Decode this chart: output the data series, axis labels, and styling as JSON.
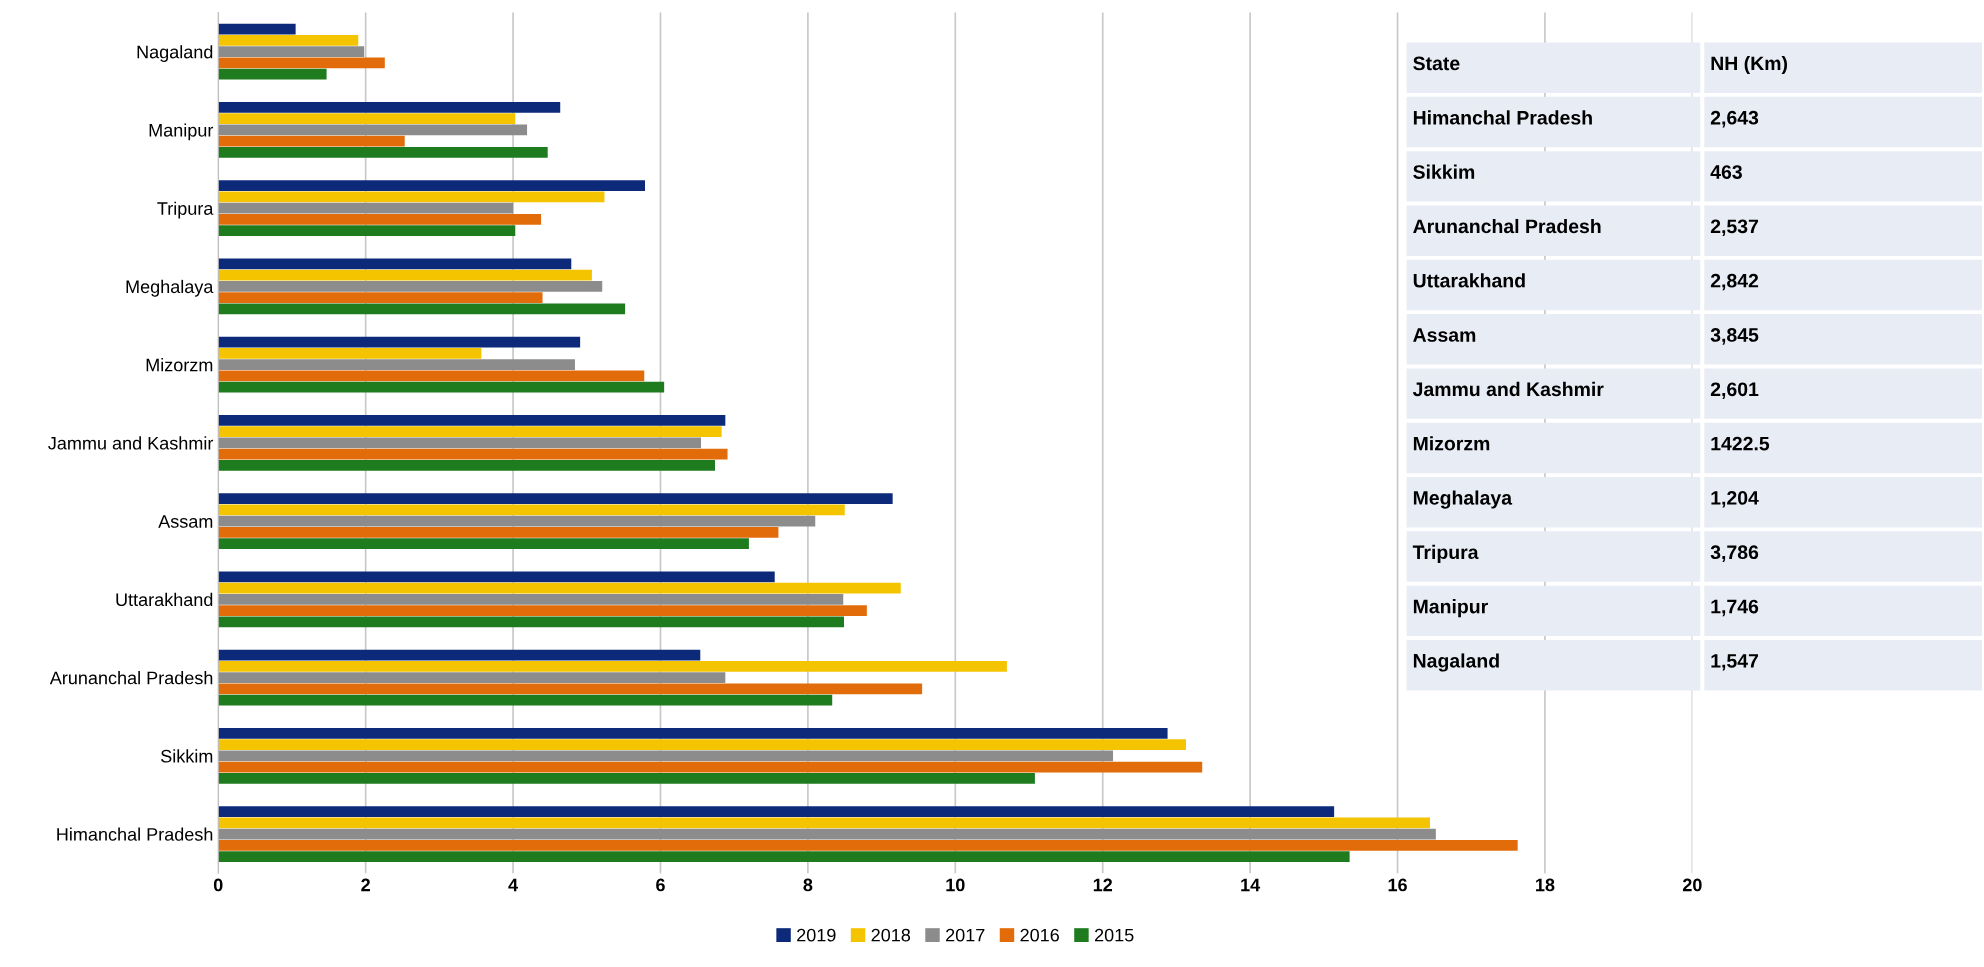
{
  "chart_data": {
    "type": "bar",
    "orientation": "horizontal",
    "categories": [
      "Nagaland",
      "Manipur",
      "Tripura",
      "Meghalaya",
      "Mizorzm",
      "Jammu and Kashmir",
      "Assam",
      "Uttarakhand",
      "Arunanchal Pradesh",
      "Sikkim",
      "Himanchal Pradesh"
    ],
    "series": [
      {
        "name": "2019",
        "color": "#0d2a7a",
        "values": [
          1.05,
          4.64,
          5.79,
          4.79,
          4.91,
          6.88,
          9.15,
          7.55,
          6.54,
          12.88,
          15.14
        ]
      },
      {
        "name": "2018",
        "color": "#f5c400",
        "values": [
          1.9,
          4.03,
          5.24,
          5.07,
          3.57,
          6.83,
          8.5,
          9.26,
          10.7,
          13.13,
          16.44
        ]
      },
      {
        "name": "2017",
        "color": "#8c8c8c",
        "values": [
          1.98,
          4.19,
          4.0,
          5.21,
          4.84,
          6.55,
          8.1,
          8.48,
          6.88,
          12.14,
          16.52
        ]
      },
      {
        "name": "2016",
        "color": "#e36c0a",
        "values": [
          2.26,
          2.53,
          4.38,
          4.4,
          5.78,
          6.91,
          7.6,
          8.8,
          9.55,
          13.35,
          17.63
        ]
      },
      {
        "name": "2015",
        "color": "#1e7b1e",
        "values": [
          1.47,
          4.47,
          4.03,
          5.52,
          6.05,
          6.74,
          7.2,
          8.49,
          8.33,
          11.08,
          15.35
        ]
      }
    ],
    "xlim": [
      0,
      20
    ],
    "xticks": [
      0,
      2,
      4,
      6,
      8,
      10,
      12,
      14,
      16,
      18,
      20
    ],
    "grid": "x",
    "legend": "bottom",
    "annotations": [
      "State",
      "NH (Km)",
      "Himanchal Pradesh",
      "2,643",
      "Sikkim",
      "463",
      "Arunanchal Pradesh",
      "2,537",
      "Uttarakhand",
      "2,842",
      "Assam",
      "3,845",
      "Jammu and Kashmir",
      "2,601",
      "Mizorzm",
      "1422.5",
      "Meghalaya",
      "1,204",
      "Tripura",
      "3,786",
      "Manipur",
      "1,746",
      "Nagaland",
      "1,547"
    ]
  }
}
